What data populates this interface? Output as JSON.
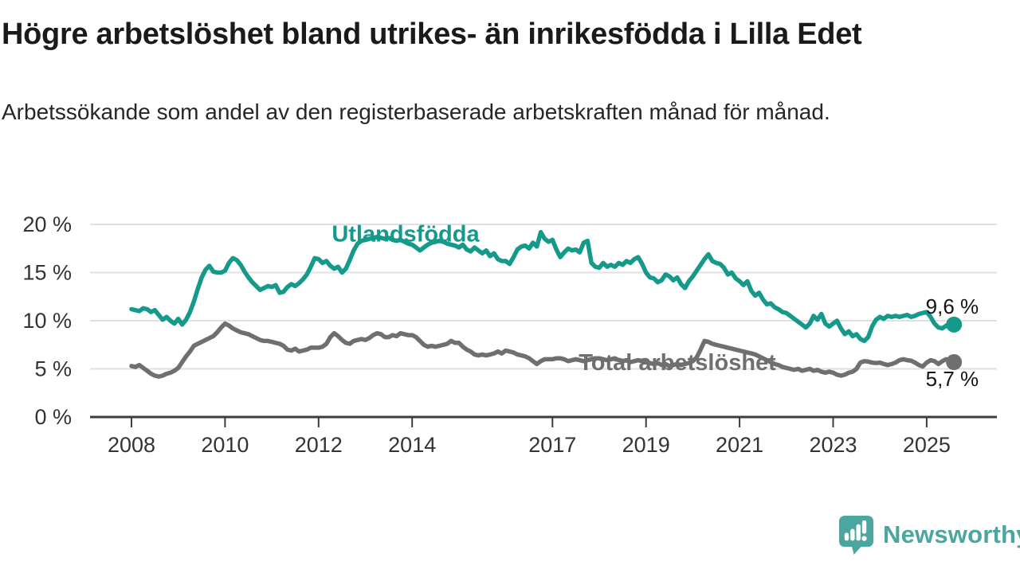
{
  "title": "Högre arbetslöshet bland utrikes- än inrikesfödda i Lilla Edet",
  "subtitle": "Arbetssökande som andel av den registerbaserade arbetskraften månad för månad.",
  "branding": {
    "name": "Newsworthy",
    "color": "#4BA69F"
  },
  "chart_data": {
    "type": "line",
    "title": "Högre arbetslöshet bland utrikes- än inrikesfödda i Lilla Edet",
    "unit": "%",
    "grid": true,
    "x_start": 2008,
    "x_step": "month",
    "x_end": "2025-08",
    "xlim": [
      2007.1,
      2026.5
    ],
    "ylim": [
      0,
      21
    ],
    "x_ticks": [
      2008,
      2010,
      2012,
      2014,
      2017,
      2019,
      2021,
      2023,
      2025
    ],
    "x_tick_labels": [
      "2008",
      "2010",
      "2012",
      "2014",
      "2017",
      "2019",
      "2021",
      "2023",
      "2025"
    ],
    "y_ticks": [
      0,
      5,
      10,
      15,
      20
    ],
    "y_tick_labels": [
      "0 %",
      "5 %",
      "10 %",
      "15 %",
      "20 %"
    ],
    "series": [
      {
        "id": "utlandsfodda",
        "name": "Utlandsfödda",
        "color": "#14998B",
        "line_width": 5.5,
        "end_value": 9.6,
        "end_label": {
          "text": "9,6 %",
          "position": "above"
        },
        "label": {
          "text": "Utlandsfödda",
          "x": 2013.86,
          "y": 19.05
        },
        "values": [
          11.2,
          11.1,
          11.0,
          11.3,
          11.2,
          10.9,
          11.1,
          10.6,
          10.1,
          10.4,
          10.0,
          9.7,
          10.2,
          9.6,
          10.1,
          10.9,
          12.0,
          13.3,
          14.5,
          15.3,
          15.7,
          15.1,
          15.0,
          15.0,
          15.2,
          16.0,
          16.5,
          16.3,
          15.8,
          15.1,
          14.5,
          14.0,
          13.6,
          13.2,
          13.4,
          13.6,
          13.5,
          13.7,
          12.9,
          13.0,
          13.5,
          13.8,
          13.6,
          13.9,
          14.3,
          14.8,
          15.6,
          16.5,
          16.4,
          16.0,
          16.2,
          15.7,
          15.4,
          15.6,
          15.0,
          15.4,
          16.3,
          17.3,
          18.0,
          18.3,
          18.4,
          18.5,
          18.6,
          18.7,
          18.6,
          18.5,
          18.6,
          18.4,
          18.3,
          18.4,
          18.2,
          18.0,
          17.9,
          17.6,
          17.3,
          17.6,
          17.9,
          18.1,
          18.2,
          18.3,
          18.2,
          18.0,
          17.9,
          17.8,
          17.6,
          17.9,
          17.4,
          17.2,
          17.6,
          17.3,
          17.0,
          17.3,
          16.7,
          17.0,
          16.4,
          16.2,
          16.2,
          15.9,
          16.6,
          17.4,
          17.7,
          17.8,
          17.5,
          18.1,
          17.7,
          19.2,
          18.5,
          18.2,
          18.4,
          17.4,
          16.6,
          17.1,
          17.5,
          17.3,
          17.4,
          17.1,
          18.1,
          18.3,
          16.0,
          15.6,
          15.5,
          16.0,
          15.6,
          15.8,
          15.6,
          16.0,
          15.8,
          16.2,
          16.0,
          16.4,
          16.6,
          15.9,
          15.0,
          14.5,
          14.4,
          14.0,
          14.2,
          14.8,
          14.6,
          14.2,
          14.5,
          13.8,
          13.4,
          14.1,
          14.6,
          15.2,
          15.8,
          16.4,
          16.9,
          16.2,
          16.0,
          15.9,
          15.5,
          14.8,
          15.0,
          14.4,
          14.1,
          13.7,
          14.1,
          13.1,
          12.6,
          12.9,
          12.2,
          11.7,
          11.8,
          11.4,
          11.2,
          10.9,
          10.8,
          10.5,
          10.2,
          9.9,
          9.6,
          9.3,
          9.7,
          10.5,
          10.1,
          10.7,
          9.7,
          9.4,
          9.7,
          10.0,
          9.2,
          8.6,
          8.9,
          8.4,
          8.6,
          8.1,
          7.9,
          8.3,
          9.4,
          10.1,
          10.4,
          10.2,
          10.5,
          10.4,
          10.5,
          10.4,
          10.5,
          10.6,
          10.4,
          10.5,
          10.7,
          10.8,
          10.9,
          10.4,
          9.7,
          9.3,
          9.2,
          9.5,
          9.3,
          9.6
        ]
      },
      {
        "id": "total-arbetsloshet",
        "name": "Total arbetslöshet",
        "color": "#6F6F6F",
        "line_width": 5.5,
        "end_value": 5.7,
        "end_label": {
          "text": "5,7 %",
          "position": "below"
        },
        "label": {
          "text": "Total arbetslöshet",
          "x": 2019.67,
          "y": 5.7
        },
        "values": [
          5.3,
          5.2,
          5.4,
          5.1,
          4.8,
          4.5,
          4.3,
          4.2,
          4.3,
          4.5,
          4.6,
          4.8,
          5.1,
          5.7,
          6.3,
          6.8,
          7.4,
          7.6,
          7.8,
          8.0,
          8.2,
          8.4,
          8.8,
          9.3,
          9.7,
          9.5,
          9.2,
          9.0,
          8.8,
          8.7,
          8.6,
          8.4,
          8.2,
          8.0,
          7.9,
          7.9,
          7.8,
          7.7,
          7.6,
          7.4,
          7.0,
          6.9,
          7.1,
          6.8,
          6.9,
          7.0,
          7.2,
          7.2,
          7.2,
          7.3,
          7.6,
          8.3,
          8.7,
          8.4,
          8.0,
          7.7,
          7.6,
          7.9,
          8.0,
          8.1,
          8.0,
          8.2,
          8.5,
          8.7,
          8.6,
          8.3,
          8.3,
          8.5,
          8.4,
          8.7,
          8.6,
          8.5,
          8.5,
          8.3,
          7.9,
          7.5,
          7.3,
          7.4,
          7.3,
          7.4,
          7.5,
          7.6,
          7.9,
          7.7,
          7.7,
          7.3,
          7.0,
          6.8,
          6.5,
          6.4,
          6.5,
          6.4,
          6.5,
          6.6,
          6.8,
          6.6,
          6.9,
          6.8,
          6.7,
          6.5,
          6.4,
          6.3,
          6.1,
          5.8,
          5.5,
          5.8,
          6.0,
          6.0,
          6.0,
          6.1,
          6.1,
          6.0,
          5.8,
          5.9,
          6.0,
          5.9,
          5.8,
          5.9,
          6.0,
          6.1,
          6.1,
          6.0,
          5.9,
          6.0,
          6.1,
          5.9,
          5.8,
          5.9,
          5.7,
          5.8,
          5.9,
          5.8,
          5.7,
          5.6,
          5.5,
          5.6,
          5.4,
          5.5,
          5.3,
          5.4,
          5.5,
          5.4,
          5.5,
          5.6,
          5.8,
          6.2,
          7.0,
          7.9,
          7.8,
          7.6,
          7.5,
          7.4,
          7.3,
          7.2,
          7.1,
          7.0,
          6.9,
          6.8,
          6.7,
          6.6,
          6.5,
          6.3,
          6.1,
          5.9,
          5.7,
          5.5,
          5.4,
          5.2,
          5.1,
          5.0,
          4.9,
          5.0,
          4.8,
          4.9,
          5.0,
          4.8,
          4.9,
          4.7,
          4.6,
          4.7,
          4.6,
          4.4,
          4.3,
          4.4,
          4.6,
          4.7,
          5.0,
          5.65,
          5.8,
          5.75,
          5.65,
          5.6,
          5.65,
          5.5,
          5.4,
          5.5,
          5.65,
          5.9,
          6.0,
          5.9,
          5.85,
          5.65,
          5.4,
          5.25,
          5.65,
          5.9,
          5.8,
          5.5,
          5.8,
          6.0,
          5.9,
          5.7
        ]
      }
    ]
  }
}
